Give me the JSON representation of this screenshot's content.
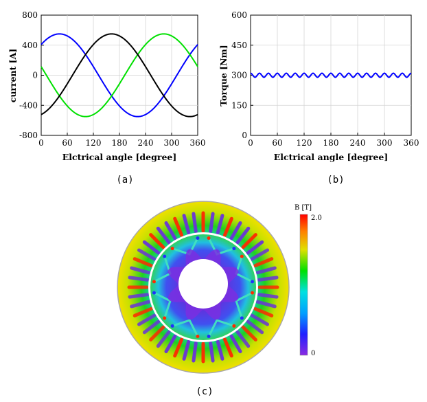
{
  "chart_data": [
    {
      "type": "line",
      "caption": "(a)",
      "xlabel": "Elctrical angle [degree]",
      "ylabel": "current [A]",
      "xlim": [
        0,
        360
      ],
      "ylim": [
        -800,
        800
      ],
      "xticks": [
        0,
        60,
        120,
        180,
        240,
        300,
        360
      ],
      "yticks": [
        -800,
        -400,
        0,
        400,
        800
      ],
      "grid": true,
      "amplitude": 550,
      "series": [
        {
          "color": "#0000ff",
          "phase_deg": 48,
          "x": [
            0,
            45,
            90,
            135,
            180,
            225,
            270,
            315,
            360
          ],
          "values": [
            409,
            548,
            430,
            40,
            -409,
            -548,
            -430,
            -40,
            409
          ]
        },
        {
          "color": "#00e000",
          "phase_deg": 168,
          "x": [
            0,
            45,
            90,
            135,
            180,
            225,
            270,
            315,
            360
          ],
          "values": [
            -537,
            -239,
            205,
            514,
            537,
            239,
            -205,
            -514,
            -537
          ]
        },
        {
          "color": "#000000",
          "phase_deg": -72,
          "x": [
            0,
            45,
            90,
            135,
            180,
            225,
            270,
            315,
            360
          ],
          "values": [
            128,
            -309,
            -544,
            -474,
            -128,
            309,
            544,
            474,
            128
          ]
        }
      ]
    },
    {
      "type": "line",
      "caption": "(b)",
      "xlabel": "Elctrical angle [degree]",
      "ylabel": "Torque [Nm]",
      "xlim": [
        0,
        360
      ],
      "ylim": [
        0,
        600
      ],
      "xticks": [
        0,
        60,
        120,
        180,
        240,
        300,
        360
      ],
      "yticks": [
        0,
        150,
        300,
        450,
        600
      ],
      "grid": true,
      "series": [
        {
          "color": "#0000ff",
          "mean": 300,
          "ripple_amplitude": 10,
          "ripple_cycles": 18,
          "x": [
            0,
            10,
            20,
            30,
            40,
            50,
            60
          ],
          "values": [
            310,
            290,
            310,
            290,
            310,
            290,
            310
          ]
        }
      ]
    }
  ],
  "figure_c": {
    "caption": "(c)",
    "colorbar_title": "B [T]",
    "colorbar_max": "2.0",
    "colorbar_min": "0",
    "colors": {
      "stator_outer": "#e8e000",
      "rotor_core": "#5a3bd8",
      "slot_red": "#ff2a00",
      "slot_purple": "#6a34d9"
    }
  }
}
